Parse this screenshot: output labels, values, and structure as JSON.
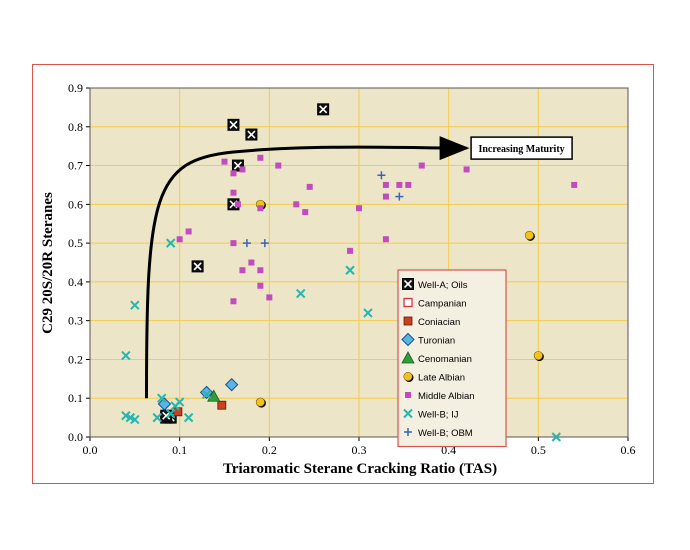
{
  "chart_data": {
    "type": "scatter",
    "xlabel": "Triaromatic Sterane Cracking Ratio (TAS)",
    "ylabel": "C29 20S/20R Steranes",
    "xlim": [
      0,
      0.6
    ],
    "ylim": [
      0,
      0.9
    ],
    "x_ticks": [
      "0.0",
      "0.1",
      "0.2",
      "0.3",
      "0.4",
      "0.5",
      "0.6"
    ],
    "y_ticks": [
      "0.0",
      "0.1",
      "0.2",
      "0.3",
      "0.4",
      "0.5",
      "0.6",
      "0.7",
      "0.8",
      "0.9"
    ],
    "grid": true,
    "legend_position": "bottom-right",
    "annotation": "Increasing Maturity",
    "colors": {
      "plot_background": "#ece5c7",
      "grid": "#f2cc4a",
      "frame": "#d9534f"
    },
    "series": [
      {
        "name": "Well-A; Oils",
        "marker": "boxed-x",
        "color": "#000000",
        "points": [
          [
            0.16,
            0.805
          ],
          [
            0.18,
            0.78
          ],
          [
            0.26,
            0.845
          ],
          [
            0.165,
            0.7
          ],
          [
            0.16,
            0.6
          ],
          [
            0.12,
            0.44
          ],
          [
            0.085,
            0.05
          ],
          [
            0.09,
            0.05
          ],
          [
            0.085,
            0.055
          ]
        ]
      },
      {
        "name": "Campanian",
        "marker": "open-square",
        "color": "#e0303a",
        "points": []
      },
      {
        "name": "Coniacian",
        "marker": "square",
        "color": "#c8421b",
        "points": [
          [
            0.098,
            0.065
          ],
          [
            0.147,
            0.082
          ]
        ]
      },
      {
        "name": "Turonian",
        "marker": "diamond",
        "color": "#5ab4e8",
        "points": [
          [
            0.158,
            0.135
          ],
          [
            0.13,
            0.115
          ],
          [
            0.083,
            0.085
          ]
        ]
      },
      {
        "name": "Cenomanian",
        "marker": "triangle",
        "color": "#2f9e3a",
        "points": [
          [
            0.138,
            0.105
          ]
        ]
      },
      {
        "name": "Late Albian",
        "marker": "circle",
        "color": "#f2c21b",
        "points": [
          [
            0.19,
            0.6
          ],
          [
            0.49,
            0.52
          ],
          [
            0.5,
            0.21
          ],
          [
            0.19,
            0.09
          ]
        ]
      },
      {
        "name": "Middle Albian",
        "marker": "small-square",
        "color": "#c34bc0",
        "points": [
          [
            0.16,
            0.68
          ],
          [
            0.15,
            0.71
          ],
          [
            0.19,
            0.72
          ],
          [
            0.21,
            0.7
          ],
          [
            0.17,
            0.69
          ],
          [
            0.245,
            0.645
          ],
          [
            0.23,
            0.6
          ],
          [
            0.24,
            0.58
          ],
          [
            0.16,
            0.63
          ],
          [
            0.19,
            0.59
          ],
          [
            0.165,
            0.6
          ],
          [
            0.33,
            0.62
          ],
          [
            0.345,
            0.65
          ],
          [
            0.355,
            0.65
          ],
          [
            0.33,
            0.65
          ],
          [
            0.37,
            0.7
          ],
          [
            0.42,
            0.69
          ],
          [
            0.54,
            0.65
          ],
          [
            0.3,
            0.59
          ],
          [
            0.1,
            0.51
          ],
          [
            0.11,
            0.53
          ],
          [
            0.16,
            0.5
          ],
          [
            0.18,
            0.45
          ],
          [
            0.17,
            0.43
          ],
          [
            0.19,
            0.43
          ],
          [
            0.19,
            0.39
          ],
          [
            0.2,
            0.36
          ],
          [
            0.16,
            0.35
          ],
          [
            0.33,
            0.51
          ],
          [
            0.29,
            0.48
          ]
        ]
      },
      {
        "name": "Well-B; IJ",
        "marker": "x",
        "color": "#27b6ad",
        "points": [
          [
            0.05,
            0.34
          ],
          [
            0.04,
            0.21
          ],
          [
            0.09,
            0.5
          ],
          [
            0.29,
            0.43
          ],
          [
            0.31,
            0.32
          ],
          [
            0.235,
            0.37
          ],
          [
            0.04,
            0.055
          ],
          [
            0.045,
            0.05
          ],
          [
            0.05,
            0.045
          ],
          [
            0.075,
            0.05
          ],
          [
            0.08,
            0.1
          ],
          [
            0.09,
            0.06
          ],
          [
            0.095,
            0.08
          ],
          [
            0.1,
            0.09
          ],
          [
            0.11,
            0.05
          ],
          [
            0.13,
            0.11
          ],
          [
            0.52,
            0.0
          ]
        ]
      },
      {
        "name": "Well-B; OBM",
        "marker": "plus",
        "color": "#3b63b8",
        "points": [
          [
            0.325,
            0.675
          ],
          [
            0.345,
            0.62
          ],
          [
            0.175,
            0.5
          ],
          [
            0.195,
            0.5
          ]
        ]
      }
    ]
  }
}
